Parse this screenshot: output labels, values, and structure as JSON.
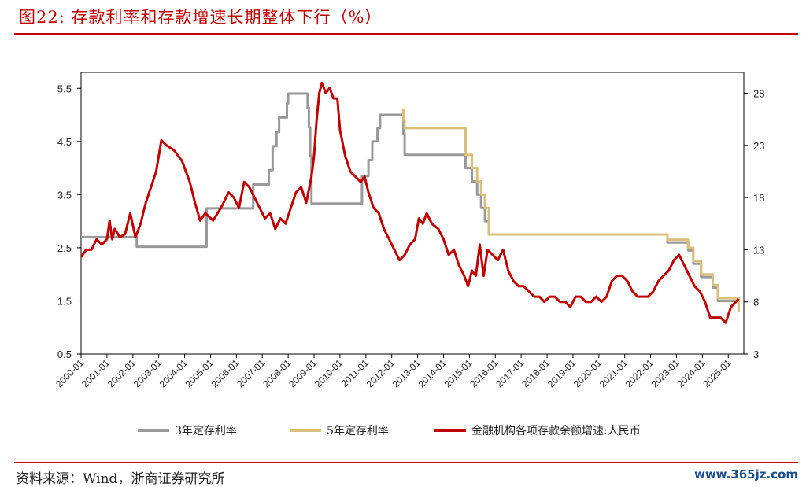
{
  "header": {
    "title": "图22:   存款利率和存款增速长期整体下行（%）"
  },
  "footer": {
    "source": "资料来源：Wind，浙商证券研究所",
    "watermark": "www.365jz.com"
  },
  "chart_data": {
    "type": "line",
    "y_left": {
      "ticks": [
        0.5,
        1.5,
        2.5,
        3.5,
        4.5,
        5.5
      ],
      "range": [
        0.5,
        5.8
      ]
    },
    "y_right": {
      "ticks": [
        3,
        8,
        13,
        18,
        23,
        28
      ],
      "range": [
        3,
        30
      ]
    },
    "x_range": [
      2000.0,
      2025.6
    ],
    "x_ticks": [
      "2000-01",
      "2001-01",
      "2002-01",
      "2003-01",
      "2004-01",
      "2005-01",
      "2006-01",
      "2007-01",
      "2008-01",
      "2009-01",
      "2010-01",
      "2011-01",
      "2012-01",
      "2013-01",
      "2014-01",
      "2015-01",
      "2016-01",
      "2017-01",
      "2018-01",
      "2019-01",
      "2020-01",
      "2021-01",
      "2022-01",
      "2023-01",
      "2024-01",
      "2025-01"
    ],
    "legend": {
      "position": "bottom"
    },
    "colors": {
      "rate3y": "#999999",
      "rate5y": "#d9bf7a",
      "growth": "#c00000"
    },
    "series": [
      {
        "name": "3年定存利率",
        "axis": "left",
        "color": "#999999",
        "step": true,
        "points": [
          [
            2000.0,
            2.7
          ],
          [
            2002.1,
            2.7
          ],
          [
            2002.15,
            2.52
          ],
          [
            2004.8,
            2.52
          ],
          [
            2004.85,
            3.24
          ],
          [
            2006.6,
            3.24
          ],
          [
            2006.65,
            3.69
          ],
          [
            2007.2,
            3.69
          ],
          [
            2007.25,
            3.96
          ],
          [
            2007.4,
            4.41
          ],
          [
            2007.55,
            4.68
          ],
          [
            2007.65,
            4.95
          ],
          [
            2007.95,
            5.22
          ],
          [
            2008.0,
            5.4
          ],
          [
            2008.7,
            5.4
          ],
          [
            2008.75,
            5.13
          ],
          [
            2008.8,
            4.77
          ],
          [
            2008.85,
            4.23
          ],
          [
            2008.9,
            3.33
          ],
          [
            2010.8,
            3.33
          ],
          [
            2010.85,
            3.85
          ],
          [
            2011.1,
            4.15
          ],
          [
            2011.25,
            4.5
          ],
          [
            2011.45,
            4.75
          ],
          [
            2011.55,
            5.0
          ],
          [
            2012.4,
            5.0
          ],
          [
            2012.45,
            4.65
          ],
          [
            2012.5,
            4.25
          ],
          [
            2014.8,
            4.25
          ],
          [
            2014.85,
            4.0
          ],
          [
            2015.1,
            3.75
          ],
          [
            2015.3,
            3.5
          ],
          [
            2015.45,
            3.25
          ],
          [
            2015.6,
            3.0
          ],
          [
            2015.75,
            2.75
          ],
          [
            2022.6,
            2.75
          ],
          [
            2022.65,
            2.6
          ],
          [
            2023.4,
            2.6
          ],
          [
            2023.45,
            2.45
          ],
          [
            2023.65,
            2.2
          ],
          [
            2023.95,
            1.95
          ],
          [
            2024.4,
            1.75
          ],
          [
            2024.6,
            1.5
          ],
          [
            2025.4,
            1.5
          ]
        ]
      },
      {
        "name": "5年定存利率",
        "axis": "left",
        "color": "#d9bf7a",
        "step": true,
        "points": [
          [
            2012.4,
            5.1
          ],
          [
            2012.45,
            4.9
          ],
          [
            2012.5,
            4.75
          ],
          [
            2014.8,
            4.75
          ],
          [
            2014.85,
            4.25
          ],
          [
            2015.1,
            4.0
          ],
          [
            2015.3,
            3.75
          ],
          [
            2015.45,
            3.5
          ],
          [
            2015.6,
            3.25
          ],
          [
            2015.75,
            2.75
          ],
          [
            2022.6,
            2.75
          ],
          [
            2022.65,
            2.65
          ],
          [
            2023.4,
            2.65
          ],
          [
            2023.45,
            2.5
          ],
          [
            2023.65,
            2.25
          ],
          [
            2023.95,
            2.0
          ],
          [
            2024.4,
            1.8
          ],
          [
            2024.6,
            1.55
          ],
          [
            2025.4,
            1.3
          ]
        ]
      },
      {
        "name": "金融机构各项存款余额增速:人民币",
        "axis": "right",
        "color": "#c00000",
        "step": false,
        "points": [
          [
            2000.0,
            12.3
          ],
          [
            2000.2,
            13.0
          ],
          [
            2000.4,
            13.0
          ],
          [
            2000.6,
            14.0
          ],
          [
            2000.8,
            13.5
          ],
          [
            2001.0,
            14.0
          ],
          [
            2001.1,
            15.8
          ],
          [
            2001.2,
            14.0
          ],
          [
            2001.3,
            15.0
          ],
          [
            2001.5,
            14.2
          ],
          [
            2001.7,
            14.5
          ],
          [
            2001.9,
            16.5
          ],
          [
            2002.1,
            14.2
          ],
          [
            2002.3,
            15.5
          ],
          [
            2002.5,
            17.5
          ],
          [
            2002.7,
            19.0
          ],
          [
            2002.9,
            20.5
          ],
          [
            2003.0,
            22.0
          ],
          [
            2003.1,
            23.5
          ],
          [
            2003.3,
            23.0
          ],
          [
            2003.6,
            22.5
          ],
          [
            2003.9,
            21.5
          ],
          [
            2004.2,
            19.5
          ],
          [
            2004.4,
            17.5
          ],
          [
            2004.6,
            15.8
          ],
          [
            2004.8,
            16.5
          ],
          [
            2005.1,
            15.8
          ],
          [
            2005.4,
            17.0
          ],
          [
            2005.7,
            18.5
          ],
          [
            2005.9,
            18.0
          ],
          [
            2006.1,
            17.0
          ],
          [
            2006.3,
            19.5
          ],
          [
            2006.5,
            19.0
          ],
          [
            2006.7,
            18.0
          ],
          [
            2006.9,
            17.0
          ],
          [
            2007.1,
            16.0
          ],
          [
            2007.3,
            16.5
          ],
          [
            2007.5,
            15.0
          ],
          [
            2007.7,
            16.0
          ],
          [
            2007.9,
            15.5
          ],
          [
            2008.1,
            17.0
          ],
          [
            2008.3,
            18.5
          ],
          [
            2008.5,
            19.0
          ],
          [
            2008.7,
            17.5
          ],
          [
            2008.9,
            20.0
          ],
          [
            2009.0,
            22.0
          ],
          [
            2009.1,
            25.5
          ],
          [
            2009.2,
            28.0
          ],
          [
            2009.3,
            29.0
          ],
          [
            2009.45,
            28.0
          ],
          [
            2009.6,
            28.5
          ],
          [
            2009.75,
            27.5
          ],
          [
            2009.9,
            27.5
          ],
          [
            2010.0,
            24.5
          ],
          [
            2010.2,
            22.0
          ],
          [
            2010.4,
            20.5
          ],
          [
            2010.6,
            20.0
          ],
          [
            2010.8,
            19.5
          ],
          [
            2010.95,
            20.0
          ],
          [
            2011.1,
            18.5
          ],
          [
            2011.3,
            17.0
          ],
          [
            2011.5,
            16.5
          ],
          [
            2011.7,
            15.0
          ],
          [
            2011.9,
            14.0
          ],
          [
            2012.1,
            13.0
          ],
          [
            2012.3,
            12.0
          ],
          [
            2012.5,
            12.5
          ],
          [
            2012.7,
            13.5
          ],
          [
            2012.9,
            14.0
          ],
          [
            2013.05,
            16.0
          ],
          [
            2013.2,
            15.5
          ],
          [
            2013.35,
            16.5
          ],
          [
            2013.55,
            15.5
          ],
          [
            2013.8,
            15.0
          ],
          [
            2014.0,
            14.0
          ],
          [
            2014.2,
            12.5
          ],
          [
            2014.4,
            13.0
          ],
          [
            2014.6,
            11.5
          ],
          [
            2014.8,
            10.5
          ],
          [
            2014.95,
            9.5
          ],
          [
            2015.1,
            11.0
          ],
          [
            2015.25,
            10.5
          ],
          [
            2015.4,
            13.5
          ],
          [
            2015.55,
            10.5
          ],
          [
            2015.7,
            13.0
          ],
          [
            2015.9,
            12.5
          ],
          [
            2016.1,
            12.0
          ],
          [
            2016.3,
            13.0
          ],
          [
            2016.5,
            11.0
          ],
          [
            2016.7,
            10.0
          ],
          [
            2016.9,
            9.5
          ],
          [
            2017.1,
            9.5
          ],
          [
            2017.3,
            9.0
          ],
          [
            2017.5,
            8.5
          ],
          [
            2017.7,
            8.5
          ],
          [
            2017.9,
            8.0
          ],
          [
            2018.1,
            8.5
          ],
          [
            2018.3,
            8.5
          ],
          [
            2018.5,
            8.0
          ],
          [
            2018.7,
            8.0
          ],
          [
            2018.9,
            7.5
          ],
          [
            2019.1,
            8.5
          ],
          [
            2019.3,
            8.5
          ],
          [
            2019.5,
            8.0
          ],
          [
            2019.7,
            8.0
          ],
          [
            2019.9,
            8.5
          ],
          [
            2020.1,
            8.0
          ],
          [
            2020.3,
            8.5
          ],
          [
            2020.5,
            10.0
          ],
          [
            2020.7,
            10.5
          ],
          [
            2020.9,
            10.5
          ],
          [
            2021.1,
            10.0
          ],
          [
            2021.3,
            9.0
          ],
          [
            2021.5,
            8.5
          ],
          [
            2021.7,
            8.5
          ],
          [
            2021.9,
            8.5
          ],
          [
            2022.1,
            9.0
          ],
          [
            2022.3,
            10.0
          ],
          [
            2022.5,
            10.5
          ],
          [
            2022.7,
            11.0
          ],
          [
            2022.9,
            12.0
          ],
          [
            2023.1,
            12.5
          ],
          [
            2023.3,
            11.5
          ],
          [
            2023.5,
            10.5
          ],
          [
            2023.7,
            9.5
          ],
          [
            2023.9,
            9.0
          ],
          [
            2024.1,
            8.0
          ],
          [
            2024.3,
            6.5
          ],
          [
            2024.5,
            6.5
          ],
          [
            2024.7,
            6.5
          ],
          [
            2024.9,
            6.0
          ],
          [
            2025.1,
            7.5
          ],
          [
            2025.3,
            8.0
          ],
          [
            2025.4,
            8.3
          ]
        ]
      }
    ]
  }
}
